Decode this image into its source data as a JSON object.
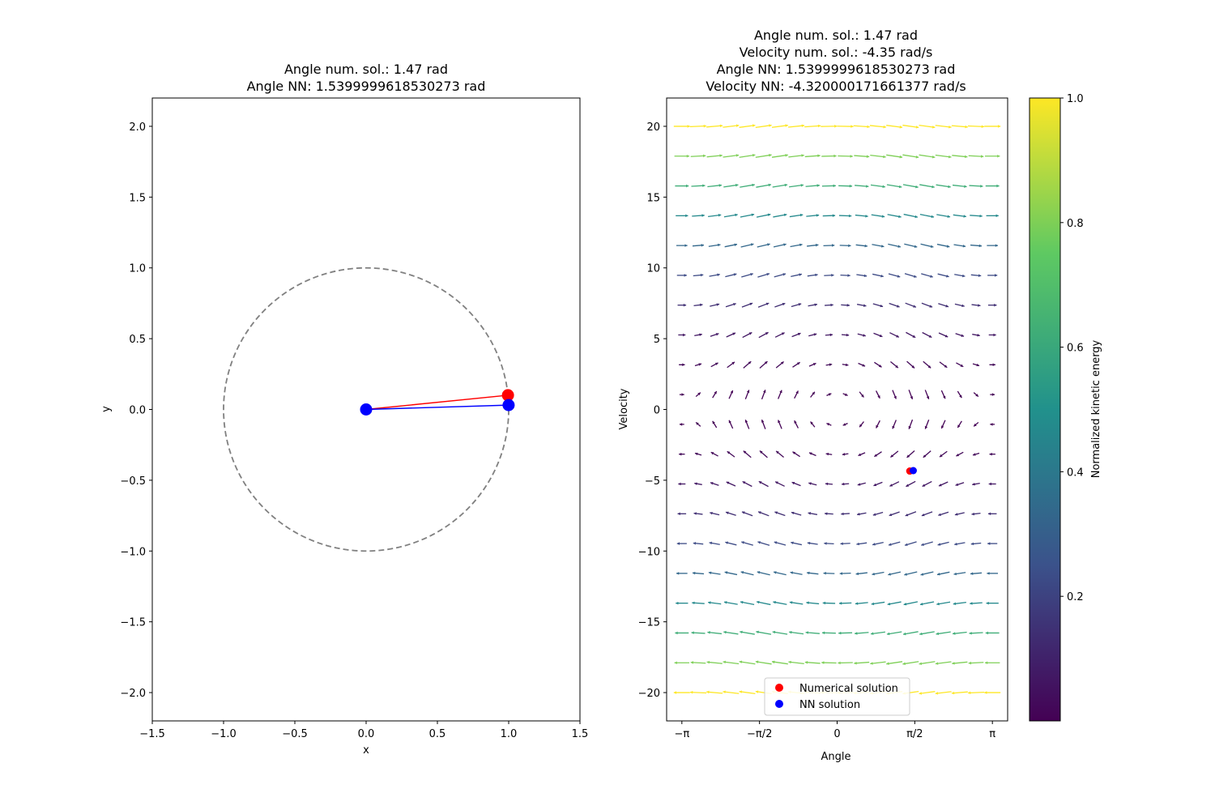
{
  "chart_data": [
    {
      "type": "scatter",
      "title_lines": [
        "Angle num. sol.: 1.47 rad",
        "Angle NN: 1.5399999618530273 rad"
      ],
      "xlabel": "x",
      "ylabel": "y",
      "xlim": [
        -1.5,
        1.5
      ],
      "ylim": [
        -2.2,
        2.2
      ],
      "xticks": [
        -1.5,
        -1.0,
        -0.5,
        0.0,
        0.5,
        1.0,
        1.5
      ],
      "xtick_labels": [
        "−1.5",
        "−1.0",
        "−0.5",
        "0.0",
        "0.5",
        "1.0",
        "1.5"
      ],
      "yticks": [
        -2.0,
        -1.5,
        -1.0,
        -0.5,
        0.0,
        0.5,
        1.0,
        1.5,
        2.0
      ],
      "ytick_labels": [
        "−2.0",
        "−1.5",
        "−1.0",
        "−0.5",
        "0.0",
        "0.5",
        "1.0",
        "1.5",
        "2.0"
      ],
      "circle": {
        "cx": 0.0,
        "cy": 0.0,
        "r": 1.0,
        "color": "#808080",
        "style": "dashed"
      },
      "pivot": {
        "x": 0.0,
        "y": 0.0,
        "color": "#0000ff"
      },
      "pendulums": [
        {
          "name": "numerical",
          "angle": 1.47,
          "color": "#ff0000"
        },
        {
          "name": "nn",
          "angle": 1.5399999618530273,
          "color": "#0000ff"
        }
      ]
    },
    {
      "type": "quiver",
      "title_lines": [
        "Angle num. sol.: 1.47 rad",
        "Velocity num. sol.: -4.35 rad/s",
        "Angle NN: 1.5399999618530273 rad",
        "Velocity NN: -4.320000171661377 rad/s"
      ],
      "xlabel": "Angle",
      "ylabel": "Velocity",
      "xlim": [
        -3.45,
        3.45
      ],
      "ylim": [
        -22,
        22
      ],
      "xticks": [
        -3.14159,
        -1.5708,
        0,
        1.5708,
        3.14159
      ],
      "xtick_labels": [
        "−π",
        "−π/2",
        "0",
        "π/2",
        "π"
      ],
      "yticks": [
        -20,
        -15,
        -10,
        -5,
        0,
        5,
        10,
        15,
        20
      ],
      "ytick_labels": [
        "−20",
        "−15",
        "−10",
        "−5",
        "0",
        "5",
        "10",
        "15",
        "20"
      ],
      "grid": {
        "theta_range": [
          -3.14159,
          3.14159
        ],
        "theta_count": 20,
        "velocity_range": [
          -20,
          20
        ],
        "velocity_count": 20
      },
      "field": "pendulum: d_theta = omega, d_omega = -(g/L) sin(theta), arrows normalized, colored by kinetic energy",
      "colormap": [
        "#440154",
        "#3b528b",
        "#21918c",
        "#5ec962",
        "#fde725"
      ],
      "points": [
        {
          "name": "Numerical solution",
          "x": 1.47,
          "y": -4.35,
          "color": "#ff0000"
        },
        {
          "name": "NN solution",
          "x": 1.5399999618530273,
          "y": -4.320000171661377,
          "color": "#0000ff"
        }
      ],
      "legend_location": "lower center",
      "colorbar": {
        "label": "Normalized kinetic energy",
        "range": [
          0,
          1
        ],
        "ticks": [
          0.2,
          0.4,
          0.6,
          0.8,
          1.0
        ],
        "tick_labels": [
          "0.2",
          "0.4",
          "0.6",
          "0.8",
          "1.0"
        ]
      }
    }
  ]
}
